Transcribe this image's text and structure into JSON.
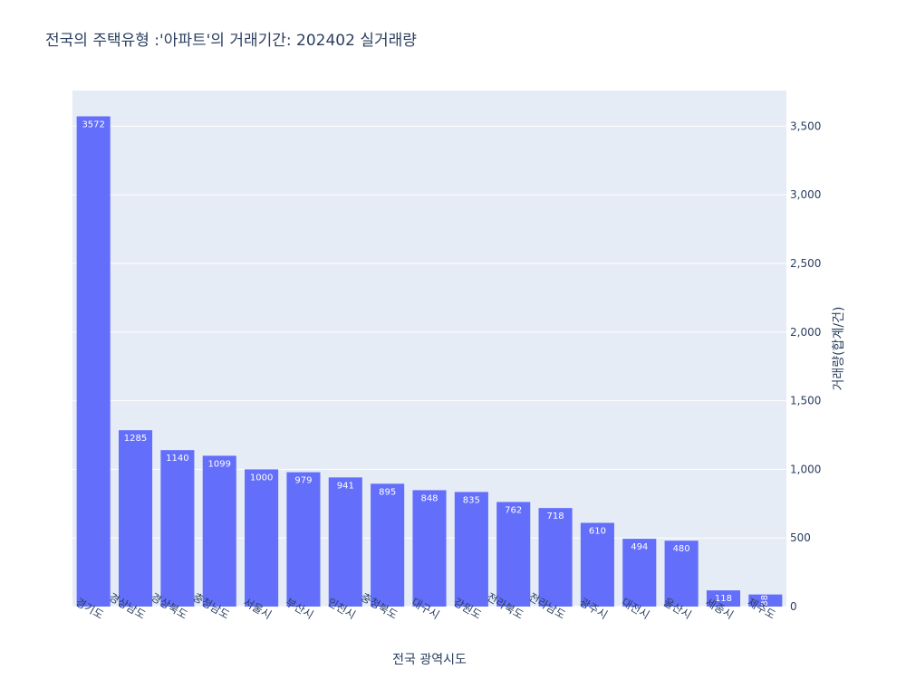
{
  "chart_data": {
    "type": "bar",
    "title": "전국의 주택유형 :'아파트'의 거래기간: 202402 실거래량",
    "xlabel": "전국 광역시도",
    "ylabel": "거래량(합계/건)",
    "categories": [
      "경기도",
      "경상남도",
      "경상북도",
      "충청남도",
      "서울시",
      "부산시",
      "인천시",
      "충청북도",
      "대구시",
      "강원도",
      "전라북도",
      "전라남도",
      "광주시",
      "대전시",
      "울산시",
      "세종시",
      "제주도"
    ],
    "values": [
      3572,
      1285,
      1140,
      1099,
      1000,
      979,
      941,
      895,
      848,
      835,
      762,
      718,
      610,
      494,
      480,
      118,
      88
    ],
    "data_labels": [
      "3572",
      "1285",
      "1140",
      "1099",
      "1000",
      "979",
      "941",
      "895",
      "848",
      "835",
      "762",
      "718",
      "610",
      "494",
      "480",
      "118",
      "88"
    ],
    "ylim": [
      0,
      3760
    ],
    "yticks": [
      0,
      500,
      1000,
      1500,
      2000,
      2500,
      3000,
      3500
    ],
    "ytick_labels": [
      "0",
      "500",
      "1,000",
      "1,500",
      "2,000",
      "2,500",
      "3,000",
      "3,500"
    ],
    "y_axis_side": "right",
    "grid": true,
    "colors": {
      "bar": "#636efa",
      "plot_bg": "#e5ecf6",
      "grid": "#ffffff",
      "text": "#2a3f5f"
    }
  }
}
